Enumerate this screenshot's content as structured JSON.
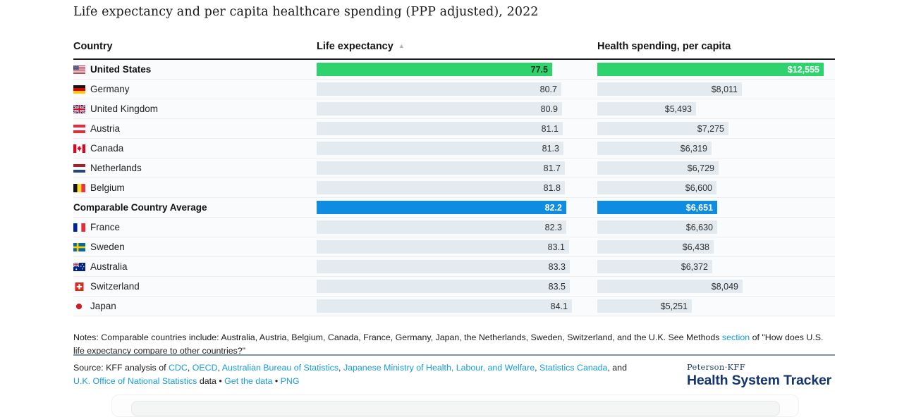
{
  "title": "Life expectancy and per capita healthcare spending (PPP adjusted), 2022",
  "columns": {
    "country": "Country",
    "life_expectancy": "Life expectancy",
    "spending": "Health spending, per capita"
  },
  "sort": {
    "icon": "ascending-triangle-icon",
    "glyph": "▲",
    "applied_to": "Life expectancy"
  },
  "colors": {
    "us_highlight": "#2ed36e",
    "average_highlight": "#0d8ce2",
    "bar_default": "#e3eaf0",
    "link": "#169bdf",
    "divider": "#7d92aa",
    "logo_navy": "#16356e",
    "header_rule": "#1c1c1c"
  },
  "rows": [
    {
      "name": "United States",
      "flag": "us",
      "type": "us",
      "le": 77.5,
      "le_label": "77.5",
      "spend": 12555,
      "spend_label": "$12,555"
    },
    {
      "name": "Germany",
      "flag": "de",
      "type": "",
      "le": 80.7,
      "le_label": "80.7",
      "spend": 8011,
      "spend_label": "$8,011"
    },
    {
      "name": "United Kingdom",
      "flag": "gb",
      "type": "",
      "le": 80.9,
      "le_label": "80.9",
      "spend": 5493,
      "spend_label": "$5,493"
    },
    {
      "name": "Austria",
      "flag": "at",
      "type": "",
      "le": 81.1,
      "le_label": "81.1",
      "spend": 7275,
      "spend_label": "$7,275"
    },
    {
      "name": "Canada",
      "flag": "ca",
      "type": "",
      "le": 81.3,
      "le_label": "81.3",
      "spend": 6319,
      "spend_label": "$6,319"
    },
    {
      "name": "Netherlands",
      "flag": "nl",
      "type": "",
      "le": 81.7,
      "le_label": "81.7",
      "spend": 6729,
      "spend_label": "$6,729"
    },
    {
      "name": "Belgium",
      "flag": "be",
      "type": "",
      "le": 81.8,
      "le_label": "81.8",
      "spend": 6600,
      "spend_label": "$6,600"
    },
    {
      "name": "Comparable Country Average",
      "flag": "",
      "type": "avg",
      "le": 82.2,
      "le_label": "82.2",
      "spend": 6651,
      "spend_label": "$6,651"
    },
    {
      "name": "France",
      "flag": "fr",
      "type": "",
      "le": 82.3,
      "le_label": "82.3",
      "spend": 6630,
      "spend_label": "$6,630"
    },
    {
      "name": "Sweden",
      "flag": "se",
      "type": "",
      "le": 83.1,
      "le_label": "83.1",
      "spend": 6438,
      "spend_label": "$6,438"
    },
    {
      "name": "Australia",
      "flag": "au",
      "type": "",
      "le": 83.3,
      "le_label": "83.3",
      "spend": 6372,
      "spend_label": "$6,372"
    },
    {
      "name": "Switzerland",
      "flag": "ch",
      "type": "",
      "le": 83.5,
      "le_label": "83.5",
      "spend": 8049,
      "spend_label": "$8,049"
    },
    {
      "name": "Japan",
      "flag": "jp",
      "type": "",
      "le": 84.1,
      "le_label": "84.1",
      "spend": 5251,
      "spend_label": "$5,251"
    }
  ],
  "chart_data": {
    "type": "bar",
    "title": "Life expectancy and per capita healthcare spending (PPP adjusted), 2022",
    "orientation": "horizontal",
    "categories": [
      "United States",
      "Germany",
      "United Kingdom",
      "Austria",
      "Canada",
      "Netherlands",
      "Belgium",
      "Comparable Country Average",
      "France",
      "Sweden",
      "Australia",
      "Switzerland",
      "Japan"
    ],
    "series": [
      {
        "name": "Life expectancy",
        "values": [
          77.5,
          80.7,
          80.9,
          81.1,
          81.3,
          81.7,
          81.8,
          82.2,
          82.3,
          83.1,
          83.3,
          83.5,
          84.1
        ],
        "axis_range": [
          0,
          84.1
        ]
      },
      {
        "name": "Health spending, per capita",
        "values": [
          12555,
          8011,
          5493,
          7275,
          6319,
          6729,
          6600,
          6651,
          6630,
          6438,
          6372,
          8049,
          5251
        ],
        "unit": "USD",
        "axis_range": [
          0,
          12555
        ]
      }
    ],
    "sort": "Life expectancy ascending",
    "highlights": {
      "United States": "green",
      "Comparable Country Average": "blue"
    },
    "grid": false,
    "legend": false
  },
  "notes": {
    "segments": [
      {
        "t": "Notes: Comparable countries include: Australia, Austria, Belgium, Canada, France, Germany, Japan, the Netherlands, Sweden, Switzerland, and the U.K. See Methods "
      },
      {
        "t": "section",
        "link": true
      },
      {
        "t": " of \"How does U.S. life expectancy compare to other countries?\""
      }
    ]
  },
  "source": {
    "segments": [
      {
        "t": "Source: KFF analysis of "
      },
      {
        "t": "CDC",
        "link": true
      },
      {
        "t": ", "
      },
      {
        "t": "OECD",
        "link": true
      },
      {
        "t": ", "
      },
      {
        "t": "Australian Bureau of Statistics",
        "link": true
      },
      {
        "t": ", "
      },
      {
        "t": "Japanese Ministry of Health, Labour, and Welfare",
        "link": true
      },
      {
        "t": ", "
      },
      {
        "t": "Statistics Canada",
        "link": true
      },
      {
        "t": ", and "
      },
      {
        "t": "U.K. Office of National Statistics",
        "link": true
      },
      {
        "t": " data • "
      },
      {
        "t": "Get the data",
        "link": true
      },
      {
        "t": " • "
      },
      {
        "t": "PNG",
        "link": true
      }
    ]
  },
  "logo": {
    "top": "Peterson·KFF",
    "main": "Health System Tracker"
  }
}
